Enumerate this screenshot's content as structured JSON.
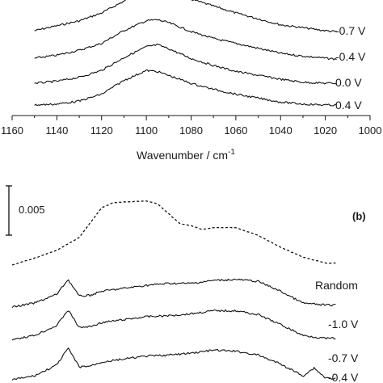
{
  "chart_data": [
    {
      "type": "line",
      "panel": "",
      "xlabel": "Wavenumber / cm",
      "xlabel_sup": "-1",
      "xlim": [
        1160,
        1000
      ],
      "x_ticks": [
        "1160",
        "1140",
        "1120",
        "1100",
        "1080",
        "1060",
        "1040",
        "1020",
        "1000"
      ],
      "series": [
        {
          "name": "-0.7 V",
          "x": [
            1150,
            1140,
            1130,
            1120,
            1110,
            1100,
            1095,
            1090,
            1080,
            1070,
            1060,
            1050,
            1040,
            1030,
            1020,
            1015
          ],
          "values": [
            0.0,
            0.0005,
            0.001,
            0.0018,
            0.003,
            0.0042,
            0.0044,
            0.0041,
            0.0032,
            0.0025,
            0.0018,
            0.0012,
            0.0006,
            0.0003,
            0.0,
            -0.0001
          ]
        },
        {
          "name": "-0.4 V",
          "x": [
            1150,
            1140,
            1130,
            1120,
            1110,
            1100,
            1095,
            1090,
            1080,
            1070,
            1060,
            1050,
            1040,
            1030,
            1020,
            1015
          ],
          "values": [
            0.0,
            0.0003,
            0.0008,
            0.0015,
            0.0028,
            0.0038,
            0.0039,
            0.0036,
            0.0027,
            0.002,
            0.0015,
            0.001,
            0.0005,
            0.0002,
            0.0,
            -0.0001
          ]
        },
        {
          "name": "0.0 V",
          "x": [
            1150,
            1140,
            1130,
            1120,
            1110,
            1100,
            1095,
            1090,
            1080,
            1070,
            1060,
            1050,
            1040,
            1030,
            1020,
            1015
          ],
          "values": [
            0.0,
            0.0002,
            0.0006,
            0.0013,
            0.0026,
            0.0037,
            0.0039,
            0.0035,
            0.0025,
            0.0018,
            0.0012,
            0.0008,
            0.0004,
            0.0001,
            0.0,
            0.0
          ]
        },
        {
          "name": "0.4 V",
          "x": [
            1150,
            1140,
            1130,
            1120,
            1110,
            1100,
            1095,
            1090,
            1080,
            1070,
            1060,
            1050,
            1040,
            1030,
            1020,
            1015
          ],
          "values": [
            0.0,
            0.0001,
            0.0004,
            0.0011,
            0.0025,
            0.0035,
            0.0034,
            0.003,
            0.0022,
            0.0016,
            0.0011,
            0.0007,
            0.0003,
            0.0001,
            0.0,
            0.0
          ]
        }
      ]
    },
    {
      "type": "line",
      "panel": "(b)",
      "scalebar_label": "0.005",
      "scalebar_value": 0.005,
      "series": [
        {
          "name": "Random",
          "dashed": true,
          "x": [
            1160,
            1150,
            1140,
            1130,
            1120,
            1115,
            1110,
            1100,
            1095,
            1090,
            1085,
            1080,
            1075,
            1070,
            1060,
            1050,
            1040,
            1030,
            1020,
            1015
          ],
          "values": [
            0.0,
            0.0007,
            0.0015,
            0.0028,
            0.0058,
            0.0063,
            0.0064,
            0.0065,
            0.0062,
            0.0052,
            0.0042,
            0.004,
            0.0036,
            0.0038,
            0.0038,
            0.003,
            0.0018,
            0.0008,
            0.0002,
            0.0002
          ]
        },
        {
          "name": "-1.0 V",
          "x": [
            1160,
            1150,
            1140,
            1135,
            1130,
            1125,
            1120,
            1110,
            1100,
            1090,
            1080,
            1070,
            1060,
            1050,
            1040,
            1030,
            1020,
            1015
          ],
          "values": [
            0.0,
            0.0004,
            0.0013,
            0.0028,
            0.0011,
            0.0012,
            0.0016,
            0.0019,
            0.0022,
            0.0024,
            0.0024,
            0.0027,
            0.0028,
            0.0026,
            0.0016,
            0.0004,
            0.0002,
            0.0002
          ]
        },
        {
          "name": "-0.7 V",
          "x": [
            1160,
            1150,
            1140,
            1135,
            1130,
            1125,
            1120,
            1110,
            1100,
            1090,
            1080,
            1070,
            1060,
            1050,
            1040,
            1030,
            1020,
            1015
          ],
          "values": [
            0.0,
            0.0004,
            0.0014,
            0.003,
            0.0012,
            0.0013,
            0.0017,
            0.002,
            0.0023,
            0.0024,
            0.0026,
            0.0029,
            0.0029,
            0.0025,
            0.0015,
            0.0004,
            0.0001,
            0.0001
          ]
        },
        {
          "name": "-0.4 V",
          "x": [
            1160,
            1150,
            1140,
            1135,
            1130,
            1125,
            1120,
            1110,
            1100,
            1090,
            1080,
            1070,
            1060,
            1050,
            1040,
            1030,
            1025,
            1020,
            1015
          ],
          "values": [
            0.0,
            0.0004,
            0.0015,
            0.0032,
            0.0013,
            0.0014,
            0.0018,
            0.0021,
            0.0024,
            0.0025,
            0.0027,
            0.003,
            0.0029,
            0.0025,
            0.0016,
            0.0004,
            0.0012,
            0.0002,
            0.0001
          ]
        }
      ]
    }
  ]
}
